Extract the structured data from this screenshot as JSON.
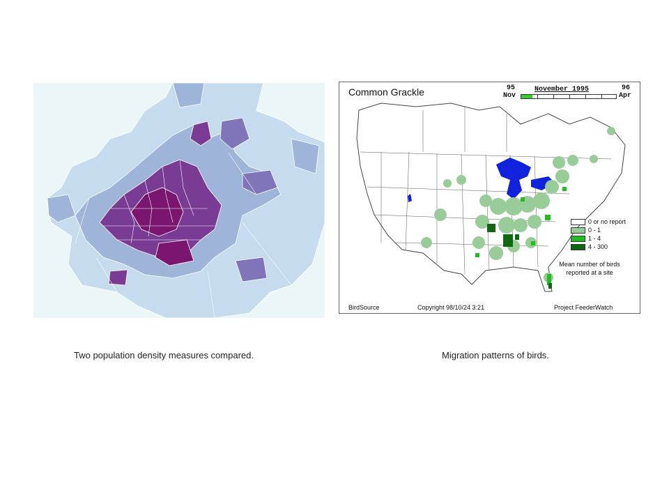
{
  "captions": {
    "left": "Two population density measures compared.",
    "right": "Migration patterns of birds."
  },
  "bird_map": {
    "title": "Common Grackle",
    "time_start_num": "95",
    "time_start_month": "Nov",
    "time_end_num": "96",
    "time_end_month": "Apr",
    "current_period": "November 1995",
    "progress_fraction": 0.12,
    "legend": [
      {
        "label": "0 or no report",
        "color": "#ffffff"
      },
      {
        "label": "0 - 1",
        "color": "#99cc99"
      },
      {
        "label": "1 - 4",
        "color": "#22bb22"
      },
      {
        "label": "4 - 300",
        "color": "#116611"
      }
    ],
    "legend_caption_line1": "Mean number of birds",
    "legend_caption_line2": "reported at a site",
    "footer_left": "BirdSource",
    "footer_center": "Copyright 98/10/24 3:21",
    "footer_right": "Project FeederWatch",
    "colors": {
      "water": "#1122dd",
      "land_outline": "#444444"
    }
  },
  "density_map": {
    "colors": {
      "lowest": "#eaf6f8",
      "low": "#c6dcee",
      "mid": "#9fb4d9",
      "high": "#7f75b8",
      "higher": "#7a3b95",
      "highest": "#7a1670"
    }
  }
}
